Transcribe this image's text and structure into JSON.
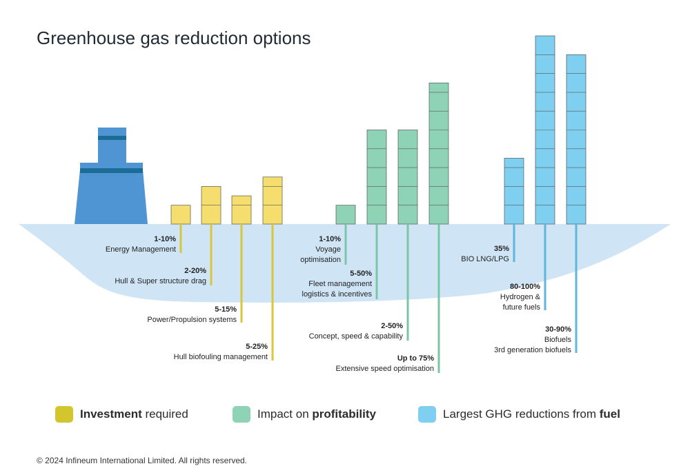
{
  "title": "Greenhouse gas reduction options",
  "colors": {
    "investment": "#f5dd6e",
    "investment_line": "#d7c73a",
    "profitability": "#8fd3b6",
    "profitability_line": "#7cc4a6",
    "fuel": "#7fd0f0",
    "fuel_line": "#5fb6dc",
    "hull": "#cfe4f5",
    "funnel": "#4f95d3",
    "funnel_band": "#1b6c96",
    "bar_stroke": "#555555"
  },
  "chart_data": {
    "type": "bar",
    "categories": [
      "Energy Management",
      "Hull & Super structure drag",
      "Power/Propulsion systems",
      "Hull biofouling management",
      "Voyage optimisation",
      "Fleet management logistics & incentives",
      "Concept, speed & capability",
      "Extensive speed optimisation",
      "BIO LNG/LPG",
      "Hydrogen & future fuels",
      "Biofuels 3rd generation biofuels"
    ],
    "bars": [
      {
        "group": "investment",
        "blocks": 1,
        "range": "1-10%",
        "label": [
          "Energy Management"
        ]
      },
      {
        "group": "investment",
        "blocks": 2,
        "range": "2-20%",
        "label": [
          "Hull & Super structure drag"
        ]
      },
      {
        "group": "investment",
        "blocks": 1.5,
        "range": "5-15%",
        "label": [
          "Power/Propulsion systems"
        ]
      },
      {
        "group": "investment",
        "blocks": 2.5,
        "range": "5-25%",
        "label": [
          "Hull biofouling management"
        ]
      },
      {
        "group": "profitability",
        "blocks": 1,
        "range": "1-10%",
        "label": [
          "Voyage",
          "optimisation"
        ]
      },
      {
        "group": "profitability",
        "blocks": 5,
        "range": "5-50%",
        "label": [
          "Fleet management",
          "logistics & incentives"
        ]
      },
      {
        "group": "profitability",
        "blocks": 5,
        "range": "2-50%",
        "label": [
          "Concept, speed & capability"
        ]
      },
      {
        "group": "profitability",
        "blocks": 7.5,
        "range": "Up to 75%",
        "label": [
          "Extensive speed optimisation"
        ]
      },
      {
        "group": "fuel",
        "blocks": 3.5,
        "range": "35%",
        "label": [
          "BIO LNG/LPG"
        ]
      },
      {
        "group": "fuel",
        "blocks": 10,
        "range": "80-100%",
        "label": [
          "Hydrogen &",
          "future fuels"
        ]
      },
      {
        "group": "fuel",
        "blocks": 9,
        "range": "30-90%",
        "label": [
          "Biofuels",
          "3rd generation biofuels"
        ]
      }
    ]
  },
  "legend": [
    {
      "key": "investment",
      "bold": "Investment",
      "rest": " required",
      "bold_first": true
    },
    {
      "key": "profitability",
      "plain": "Impact on ",
      "bold": "profitability",
      "bold_first": false
    },
    {
      "key": "fuel",
      "plain": "Largest GHG reductions from ",
      "bold": "fuel",
      "bold_first": false
    }
  ],
  "copyright": "© 2024 Infineum International Limited. All rights reserved."
}
